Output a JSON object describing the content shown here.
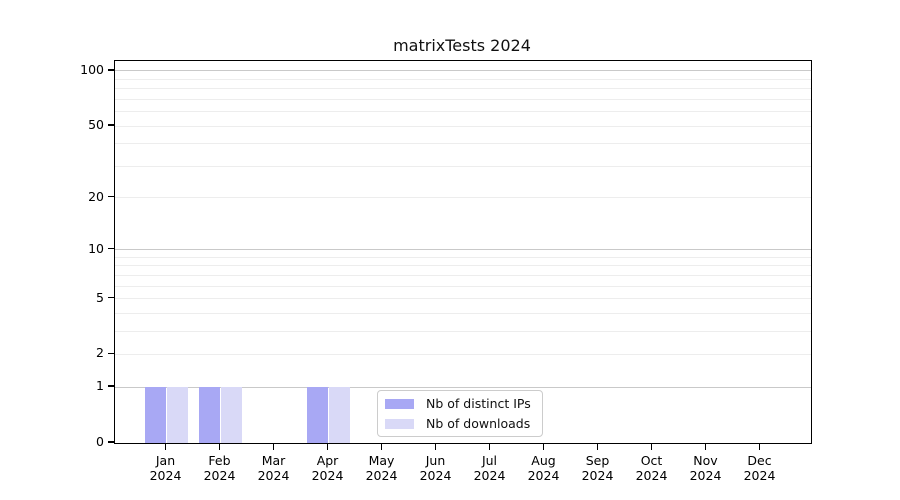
{
  "title": "matrixTests 2024",
  "colors": {
    "background": "#ffffff",
    "spine": "#000000",
    "grid_major": "#c9c9c9",
    "grid_minor": "#ededed",
    "bar_distinct_ips": "#a8a8f4",
    "bar_downloads": "#d9d9f7",
    "text": "#111111"
  },
  "chart_data": {
    "type": "bar",
    "title": "matrixTests 2024",
    "categories": [
      "Jan",
      "Feb",
      "Mar",
      "Apr",
      "May",
      "Jun",
      "Jul",
      "Aug",
      "Sep",
      "Oct",
      "Nov",
      "Dec"
    ],
    "year_label": "2024",
    "series": [
      {
        "name": "Nb of distinct IPs",
        "color": "#a8a8f4",
        "values": [
          1,
          1,
          0,
          1,
          0,
          0,
          0,
          0,
          0,
          0,
          0,
          0
        ]
      },
      {
        "name": "Nb of downloads",
        "color": "#d9d9f7",
        "values": [
          1,
          1,
          0,
          1,
          0,
          0,
          0,
          0,
          0,
          0,
          0,
          0
        ]
      }
    ],
    "xlabel": "",
    "ylabel": "",
    "y_scale": "log1p",
    "y_ticks": [
      0,
      1,
      2,
      5,
      10,
      20,
      50,
      100
    ],
    "grid_major_values": [
      1,
      10,
      100
    ],
    "grid_minor_values": [
      2,
      3,
      4,
      5,
      6,
      7,
      8,
      9,
      20,
      30,
      40,
      50,
      60,
      70,
      80,
      90
    ],
    "ylim": [
      0,
      113
    ],
    "grid": "both",
    "legend_position": "lower center"
  }
}
